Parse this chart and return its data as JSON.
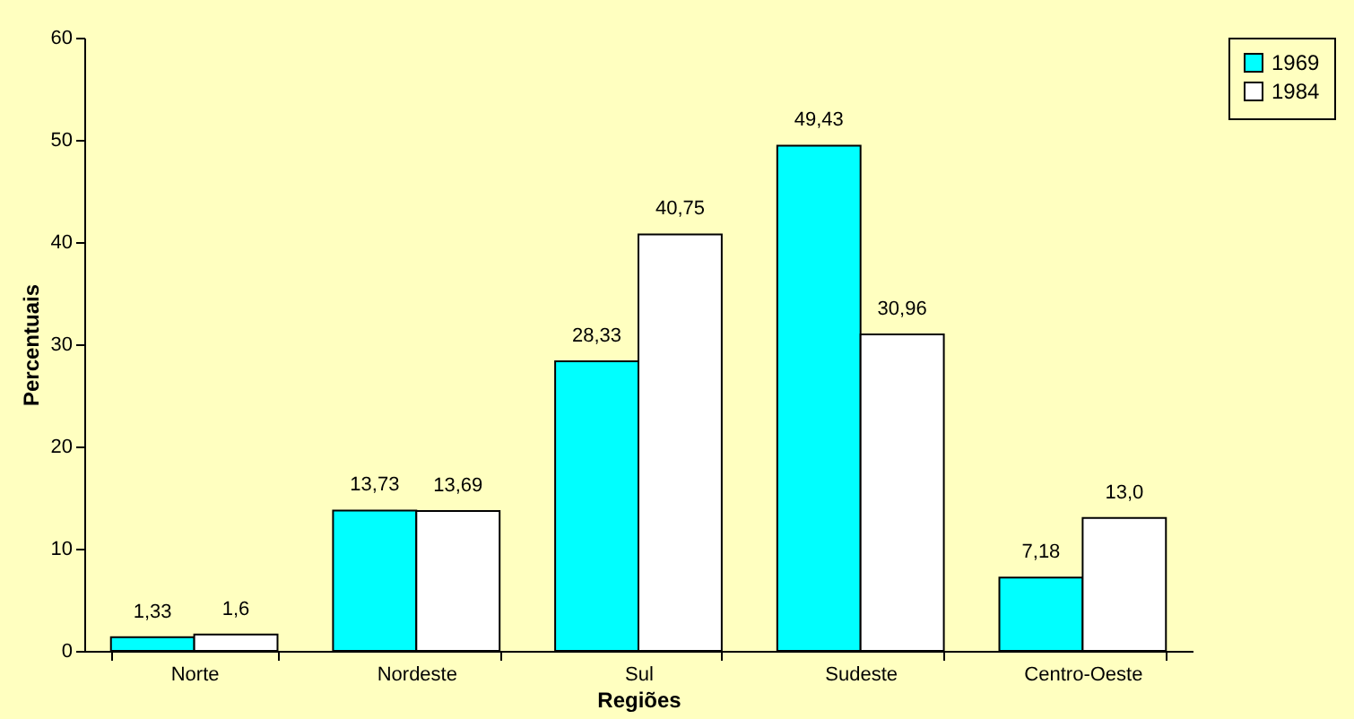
{
  "chart_data": {
    "type": "bar",
    "xlabel": "Regiões",
    "ylabel": "Percentuais",
    "categories": [
      "Norte",
      "Nordeste",
      "Sul",
      "Sudeste",
      "Centro-Oeste"
    ],
    "series": [
      {
        "name": "1969",
        "color": "#00ffff",
        "values": [
          1.33,
          13.73,
          28.33,
          49.43,
          7.18
        ],
        "value_labels": [
          "1,33",
          "13,73",
          "28,33",
          "49,43",
          "7,18"
        ]
      },
      {
        "name": "1984",
        "color": "#ffffff",
        "values": [
          1.6,
          13.69,
          40.75,
          30.96,
          13.0
        ],
        "value_labels": [
          "1,6",
          "13,69",
          "40,75",
          "30,96",
          "13,0"
        ]
      }
    ],
    "ylim": [
      0,
      60
    ],
    "yticks": [
      0,
      10,
      20,
      30,
      40,
      50,
      60
    ],
    "grid": false,
    "legend": "right"
  }
}
